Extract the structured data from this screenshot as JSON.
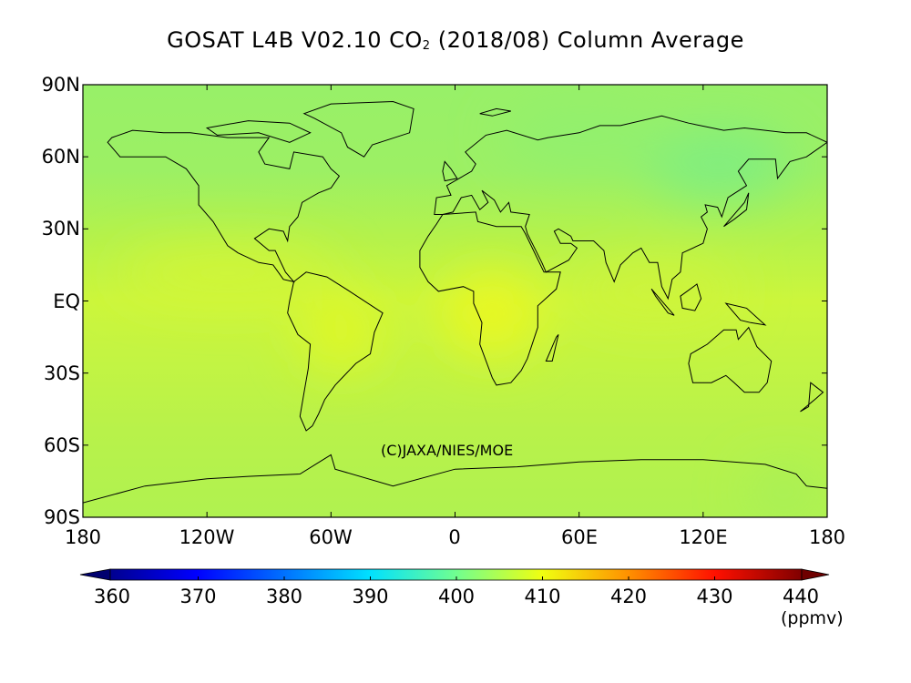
{
  "title": {
    "main": "GOSAT L4B V02.10 CO",
    "subscript": "2",
    "rest": " (2018/08) Column Average"
  },
  "copyright": "(C)JAXA/NIES/MOE",
  "chart_data": {
    "type": "heatmap",
    "title": "GOSAT L4B V02.10 CO2 (2018/08) Column Average",
    "projection": "equirectangular",
    "x_ticks": [
      "180",
      "120W",
      "60W",
      "0",
      "60E",
      "120E",
      "180"
    ],
    "y_ticks": [
      "90N",
      "60N",
      "30N",
      "EQ",
      "30S",
      "60S",
      "90S"
    ],
    "xlim": [
      -180,
      180
    ],
    "ylim": [
      -90,
      90
    ],
    "colorbar": {
      "ticks": [
        "360",
        "370",
        "380",
        "390",
        "400",
        "410",
        "420",
        "430",
        "440"
      ],
      "range": [
        360,
        440
      ],
      "unit": "(ppmv)",
      "colormap": "jet",
      "extend": "both"
    },
    "field_summary": {
      "northern_high_latitudes": 402,
      "siberia_east_asia_min": 400,
      "tropics": 407,
      "central_africa_max": 409,
      "amazon_max": 408,
      "southern_hemisphere": 405
    }
  }
}
